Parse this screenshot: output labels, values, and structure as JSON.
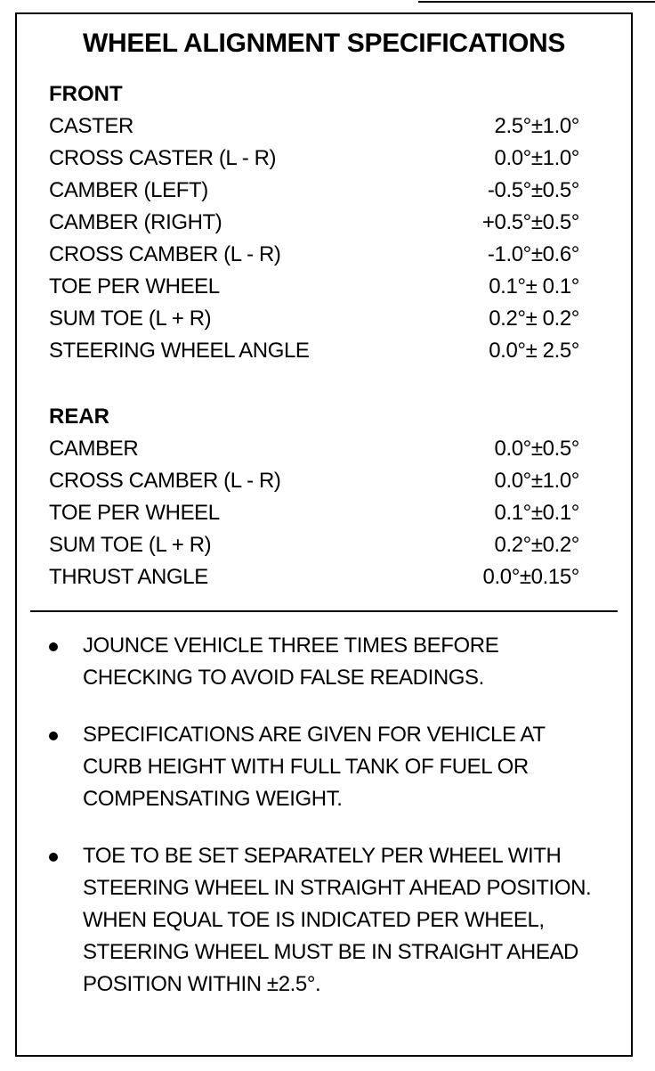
{
  "title": "WHEEL ALIGNMENT SPECIFICATIONS",
  "front": {
    "heading": "FRONT",
    "rows": [
      {
        "label": "CASTER",
        "value": "2.5°±1.0°"
      },
      {
        "label": "CROSS CASTER (L - R)",
        "value": "0.0°±1.0°"
      },
      {
        "label": "CAMBER (LEFT)",
        "value": "-0.5°±0.5°"
      },
      {
        "label": "CAMBER (RIGHT)",
        "value": "+0.5°±0.5°"
      },
      {
        "label": "CROSS CAMBER (L - R)",
        "value": "-1.0°±0.6°"
      },
      {
        "label": "TOE PER WHEEL",
        "value": "0.1°± 0.1°"
      },
      {
        "label": "SUM TOE (L + R)",
        "value": "0.2°± 0.2°"
      },
      {
        "label": "STEERING WHEEL ANGLE",
        "value": "0.0°± 2.5°"
      }
    ]
  },
  "rear": {
    "heading": "REAR",
    "rows": [
      {
        "label": "CAMBER",
        "value": "0.0°±0.5°"
      },
      {
        "label": "CROSS CAMBER (L - R)",
        "value": "0.0°±1.0°"
      },
      {
        "label": "TOE PER WHEEL",
        "value": "0.1°±0.1°"
      },
      {
        "label": "SUM TOE (L + R)",
        "value": "0.2°±0.2°"
      },
      {
        "label": "THRUST ANGLE",
        "value": "0.0°±0.15°"
      }
    ]
  },
  "notes": [
    "JOUNCE VEHICLE THREE TIMES BEFORE CHECKING TO AVOID FALSE READINGS.",
    "SPECIFICATIONS ARE GIVEN FOR VEHICLE AT CURB HEIGHT WITH FULL TANK OF FUEL OR COMPENSATING WEIGHT.",
    "TOE TO BE SET SEPARATELY PER WHEEL WITH STEERING WHEEL IN STRAIGHT AHEAD POSITION.  WHEN EQUAL TOE IS INDICATED PER WHEEL, STEERING WHEEL MUST BE IN STRAIGHT AHEAD POSITION WITHIN ±2.5°."
  ]
}
